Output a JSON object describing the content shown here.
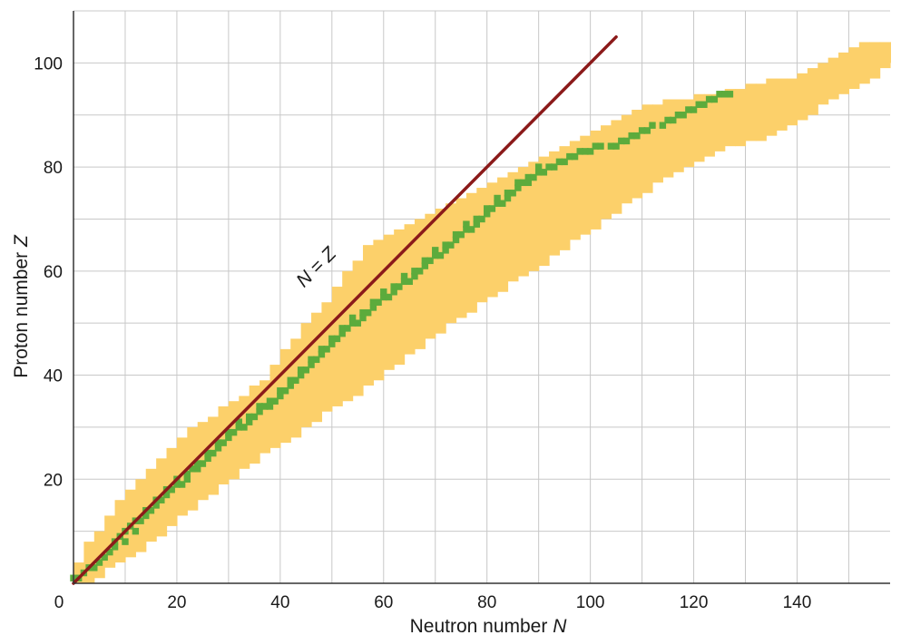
{
  "chart_data": {
    "type": "heatmap",
    "xlabel": "Neutron number ",
    "xlabel_symbol": "N",
    "ylabel": "Proton number ",
    "ylabel_symbol": "Z",
    "xlim": [
      0,
      158
    ],
    "ylim": [
      0,
      110
    ],
    "x_ticks": [
      0,
      20,
      40,
      60,
      80,
      100,
      120,
      140
    ],
    "y_ticks": [
      20,
      40,
      60,
      80,
      100
    ],
    "x_tick_labels": [
      "0",
      "20",
      "40",
      "60",
      "80",
      "100",
      "120",
      "140"
    ],
    "y_tick_labels": [
      "20",
      "40",
      "60",
      "80",
      "100"
    ],
    "grid": true,
    "grid_step": 10,
    "line": {
      "from": [
        0,
        0
      ],
      "to": [
        105,
        105
      ],
      "label": "N = Z",
      "color": "#8b1a1a"
    },
    "colors": {
      "unstable": "#fcd06a",
      "stable": "#5cab3c",
      "grid": "#c8c8c8",
      "axis": "#333333"
    },
    "unstable_band": [
      [
        0,
        0,
        4
      ],
      [
        2,
        0,
        8
      ],
      [
        4,
        1,
        10
      ],
      [
        6,
        3,
        13
      ],
      [
        8,
        4,
        16
      ],
      [
        10,
        5,
        18
      ],
      [
        12,
        6,
        20
      ],
      [
        14,
        8,
        22
      ],
      [
        16,
        9,
        24
      ],
      [
        18,
        11,
        26
      ],
      [
        20,
        13,
        28
      ],
      [
        22,
        14,
        30
      ],
      [
        24,
        16,
        31
      ],
      [
        26,
        17,
        32
      ],
      [
        28,
        19,
        34
      ],
      [
        30,
        20,
        35
      ],
      [
        32,
        22,
        36
      ],
      [
        34,
        23,
        38
      ],
      [
        36,
        25,
        39
      ],
      [
        38,
        26,
        42
      ],
      [
        40,
        27,
        45
      ],
      [
        42,
        28,
        47
      ],
      [
        44,
        30,
        50
      ],
      [
        46,
        31,
        52
      ],
      [
        48,
        33,
        54
      ],
      [
        50,
        34,
        57
      ],
      [
        52,
        35,
        60
      ],
      [
        54,
        36,
        62
      ],
      [
        56,
        38,
        65
      ],
      [
        58,
        39,
        66
      ],
      [
        60,
        41,
        67
      ],
      [
        62,
        42,
        68
      ],
      [
        64,
        44,
        69
      ],
      [
        66,
        45,
        70
      ],
      [
        68,
        47,
        71
      ],
      [
        70,
        48,
        72
      ],
      [
        72,
        50,
        73
      ],
      [
        74,
        51,
        74
      ],
      [
        76,
        52,
        75
      ],
      [
        78,
        54,
        76
      ],
      [
        80,
        55,
        77
      ],
      [
        82,
        56,
        78
      ],
      [
        84,
        58,
        79
      ],
      [
        86,
        59,
        80
      ],
      [
        88,
        60,
        81
      ],
      [
        90,
        61,
        82
      ],
      [
        92,
        63,
        83
      ],
      [
        94,
        64,
        84
      ],
      [
        96,
        66,
        85
      ],
      [
        98,
        67,
        86
      ],
      [
        100,
        68,
        87
      ],
      [
        102,
        70,
        88
      ],
      [
        104,
        71,
        89
      ],
      [
        106,
        73,
        90
      ],
      [
        108,
        74,
        91
      ],
      [
        110,
        75,
        92
      ],
      [
        112,
        77,
        92
      ],
      [
        114,
        78,
        93
      ],
      [
        116,
        79,
        93
      ],
      [
        118,
        80,
        93
      ],
      [
        120,
        81,
        94
      ],
      [
        122,
        82,
        94
      ],
      [
        124,
        83,
        94
      ],
      [
        126,
        84,
        95
      ],
      [
        128,
        84,
        95
      ],
      [
        130,
        85,
        96
      ],
      [
        132,
        85,
        96
      ],
      [
        134,
        86,
        97
      ],
      [
        136,
        87,
        97
      ],
      [
        138,
        88,
        97
      ],
      [
        140,
        89,
        98
      ],
      [
        142,
        90,
        99
      ],
      [
        144,
        92,
        100
      ],
      [
        146,
        93,
        101
      ],
      [
        148,
        94,
        102
      ],
      [
        150,
        95,
        103
      ],
      [
        152,
        96,
        104
      ],
      [
        154,
        97,
        104
      ],
      [
        156,
        99,
        104
      ],
      [
        158,
        100,
        104
      ]
    ],
    "stable_cells": [
      [
        0,
        1
      ],
      [
        1,
        1
      ],
      [
        2,
        2
      ],
      [
        3,
        3
      ],
      [
        4,
        3
      ],
      [
        5,
        4
      ],
      [
        6,
        5
      ],
      [
        7,
        6
      ],
      [
        8,
        7
      ],
      [
        8,
        8
      ],
      [
        9,
        9
      ],
      [
        10,
        8
      ],
      [
        10,
        10
      ],
      [
        11,
        11
      ],
      [
        12,
        10
      ],
      [
        12,
        12
      ],
      [
        13,
        12
      ],
      [
        14,
        13
      ],
      [
        14,
        14
      ],
      [
        15,
        14
      ],
      [
        16,
        15
      ],
      [
        16,
        16
      ],
      [
        17,
        16
      ],
      [
        18,
        17
      ],
      [
        18,
        18
      ],
      [
        19,
        18
      ],
      [
        20,
        19
      ],
      [
        20,
        20
      ],
      [
        21,
        19
      ],
      [
        22,
        20
      ],
      [
        22,
        21
      ],
      [
        23,
        22
      ],
      [
        24,
        22
      ],
      [
        24,
        23
      ],
      [
        25,
        23
      ],
      [
        26,
        24
      ],
      [
        26,
        25
      ],
      [
        27,
        25
      ],
      [
        28,
        26
      ],
      [
        28,
        27
      ],
      [
        29,
        27
      ],
      [
        30,
        28
      ],
      [
        30,
        29
      ],
      [
        31,
        29
      ],
      [
        32,
        30
      ],
      [
        32,
        31
      ],
      [
        33,
        30
      ],
      [
        34,
        31
      ],
      [
        34,
        32
      ],
      [
        35,
        32
      ],
      [
        36,
        33
      ],
      [
        36,
        34
      ],
      [
        37,
        34
      ],
      [
        38,
        34
      ],
      [
        38,
        35
      ],
      [
        39,
        35
      ],
      [
        40,
        36
      ],
      [
        40,
        37
      ],
      [
        41,
        37
      ],
      [
        42,
        38
      ],
      [
        42,
        39
      ],
      [
        43,
        39
      ],
      [
        44,
        40
      ],
      [
        44,
        41
      ],
      [
        45,
        41
      ],
      [
        46,
        42
      ],
      [
        46,
        43
      ],
      [
        47,
        43
      ],
      [
        48,
        44
      ],
      [
        48,
        45
      ],
      [
        49,
        45
      ],
      [
        50,
        46
      ],
      [
        50,
        47
      ],
      [
        51,
        47
      ],
      [
        52,
        48
      ],
      [
        52,
        49
      ],
      [
        53,
        49
      ],
      [
        54,
        50
      ],
      [
        54,
        51
      ],
      [
        55,
        50
      ],
      [
        56,
        51
      ],
      [
        56,
        52
      ],
      [
        57,
        52
      ],
      [
        58,
        53
      ],
      [
        58,
        54
      ],
      [
        59,
        54
      ],
      [
        60,
        55
      ],
      [
        60,
        56
      ],
      [
        61,
        55
      ],
      [
        62,
        56
      ],
      [
        62,
        57
      ],
      [
        63,
        57
      ],
      [
        64,
        58
      ],
      [
        64,
        59
      ],
      [
        65,
        58
      ],
      [
        66,
        59
      ],
      [
        66,
        60
      ],
      [
        67,
        60
      ],
      [
        68,
        61
      ],
      [
        68,
        62
      ],
      [
        69,
        62
      ],
      [
        70,
        63
      ],
      [
        70,
        64
      ],
      [
        71,
        63
      ],
      [
        72,
        64
      ],
      [
        72,
        65
      ],
      [
        73,
        65
      ],
      [
        74,
        66
      ],
      [
        74,
        67
      ],
      [
        75,
        67
      ],
      [
        76,
        68
      ],
      [
        76,
        69
      ],
      [
        77,
        68
      ],
      [
        78,
        69
      ],
      [
        78,
        70
      ],
      [
        79,
        70
      ],
      [
        80,
        71
      ],
      [
        80,
        72
      ],
      [
        81,
        72
      ],
      [
        82,
        73
      ],
      [
        82,
        74
      ],
      [
        83,
        73
      ],
      [
        84,
        74
      ],
      [
        84,
        75
      ],
      [
        85,
        75
      ],
      [
        86,
        76
      ],
      [
        86,
        77
      ],
      [
        87,
        77
      ],
      [
        88,
        77
      ],
      [
        88,
        78
      ],
      [
        89,
        78
      ],
      [
        90,
        79
      ],
      [
        90,
        80
      ],
      [
        91,
        79
      ],
      [
        92,
        80
      ],
      [
        93,
        80
      ],
      [
        94,
        81
      ],
      [
        95,
        81
      ],
      [
        96,
        82
      ],
      [
        97,
        82
      ],
      [
        98,
        83
      ],
      [
        99,
        83
      ],
      [
        100,
        83
      ],
      [
        101,
        84
      ],
      [
        102,
        84
      ],
      [
        104,
        84
      ],
      [
        105,
        84
      ],
      [
        106,
        85
      ],
      [
        107,
        85
      ],
      [
        108,
        86
      ],
      [
        109,
        86
      ],
      [
        110,
        87
      ],
      [
        111,
        87
      ],
      [
        112,
        88
      ],
      [
        114,
        88
      ],
      [
        115,
        89
      ],
      [
        116,
        89
      ],
      [
        117,
        90
      ],
      [
        118,
        90
      ],
      [
        119,
        91
      ],
      [
        120,
        91
      ],
      [
        121,
        92
      ],
      [
        122,
        92
      ],
      [
        123,
        93
      ],
      [
        124,
        93
      ],
      [
        125,
        94
      ],
      [
        126,
        94
      ],
      [
        127,
        94
      ]
    ]
  }
}
